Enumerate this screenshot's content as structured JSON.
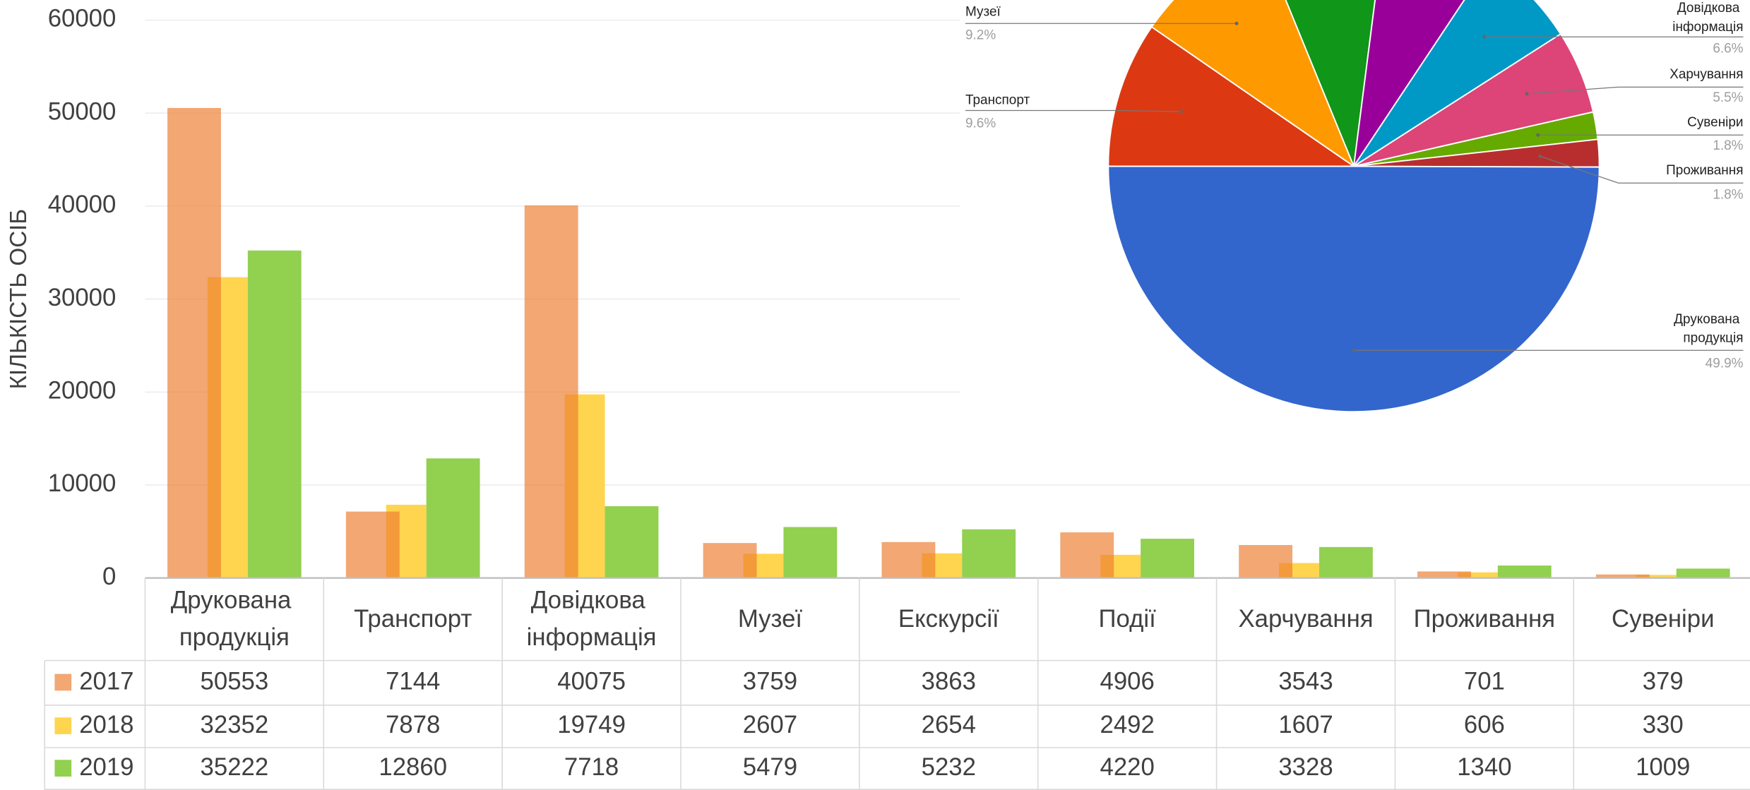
{
  "chart_data": [
    {
      "type": "bar",
      "y_label": "КІЛЬКІСТЬ ОСІБ",
      "categories": [
        "Друкована продукція",
        "Транспорт",
        "Довідкова інформація",
        "Музеї",
        "Екскурсії",
        "Події",
        "Харчування",
        "Проживання",
        "Сувеніри"
      ],
      "series": [
        {
          "name": "2017",
          "color": "#ed7d31",
          "values": [
            50553,
            7144,
            40075,
            3759,
            3863,
            4906,
            3543,
            701,
            379
          ]
        },
        {
          "name": "2018",
          "color": "#ffd54f",
          "values": [
            32352,
            7878,
            19749,
            2607,
            2654,
            2492,
            1607,
            606,
            330
          ]
        },
        {
          "name": "2019",
          "color": "#92d050",
          "values": [
            35222,
            12860,
            7718,
            5479,
            5232,
            4220,
            3328,
            1340,
            1009
          ]
        }
      ],
      "ylim": [
        0,
        60000
      ],
      "yticks": [
        0,
        10000,
        20000,
        30000,
        40000,
        50000,
        60000
      ],
      "grid": true,
      "data_table": true
    },
    {
      "type": "pie",
      "categories": [
        "Транспорт",
        "Музеї",
        null,
        null,
        "Довідкова інформація",
        "Харчування",
        "Сувеніри",
        "Проживання",
        "Друкована продукція"
      ],
      "values": [
        9.6,
        9.2,
        8.2,
        7.3,
        6.6,
        5.5,
        1.8,
        1.8,
        49.9
      ],
      "value_labels": [
        "9.6%",
        "9.2%",
        null,
        null,
        "6.6%",
        "5.5%",
        "1.8%",
        "1.8%",
        "49.9%"
      ],
      "colors": [
        "#dc3912",
        "#ff9900",
        "#109618",
        "#990099",
        "#0099c6",
        "#dd4477",
        "#66aa00",
        "#b82e2e",
        "#3366cc"
      ]
    }
  ]
}
